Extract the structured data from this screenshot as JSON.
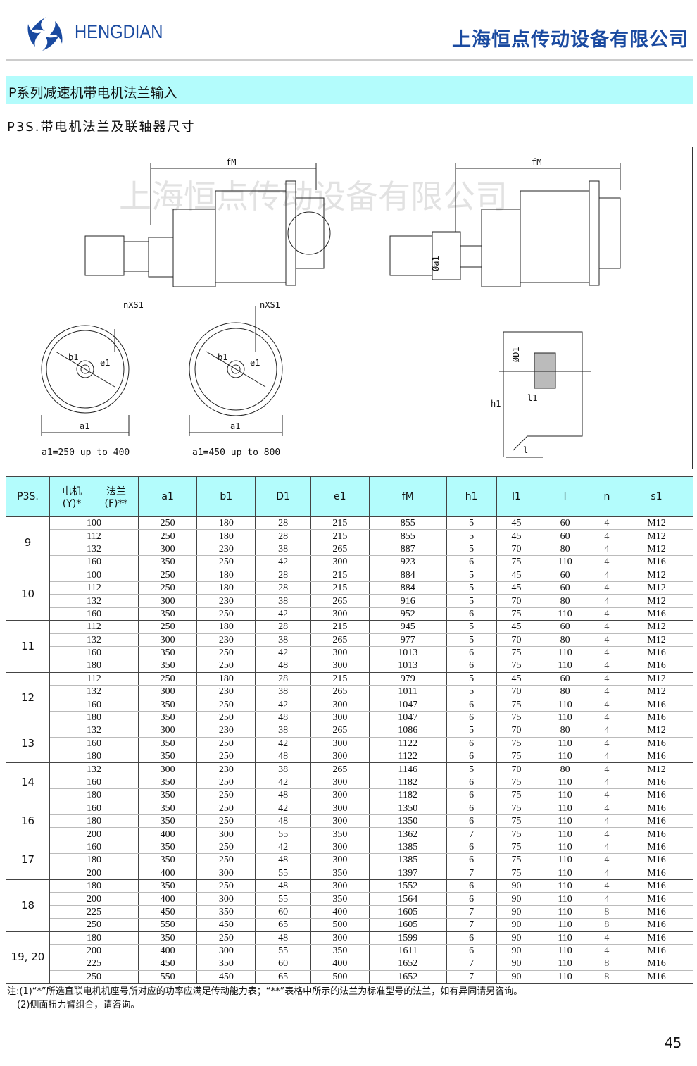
{
  "header": {
    "brand": "HENGDIAN",
    "company": "上海恒点传动设备有限公司",
    "brand_color": "#1a4aa0"
  },
  "section_title": "P系列减速机带电机法兰输入",
  "subtitle": "P3S.带电机法兰及联轴器尺寸",
  "drawing": {
    "watermark": "上海恒点传动设备有限公司",
    "labels": {
      "fM_left": "fM",
      "fM_right": "fM",
      "nXS1_left": "nXS1",
      "nXS1_right": "nXS1",
      "b1_left": "b1",
      "e1_left": "e1",
      "b1_right": "b1",
      "e1_right": "e1",
      "a1_left": "a1",
      "a1_right": "a1",
      "caption_left": "a1=250 up to 400",
      "caption_right": "a1=450 up to 800",
      "oa1": "Øa1",
      "oD1": "ØD1",
      "h1": "h1",
      "l1": "l1",
      "l": "l"
    }
  },
  "table": {
    "headers": {
      "p3s": "P3S.",
      "motor_top": "电机",
      "motor_bottom": "(Y)*",
      "flange_top": "法兰",
      "flange_bottom": "(F)**",
      "cols": [
        "a1",
        "b1",
        "D1",
        "e1",
        "fM",
        "h1",
        "l1",
        "l",
        "n",
        "s1"
      ]
    },
    "groups": [
      {
        "size": "9",
        "rows": [
          [
            "100",
            "250",
            "180",
            "28",
            "215",
            "855",
            "5",
            "45",
            "60",
            "4",
            "M12"
          ],
          [
            "112",
            "250",
            "180",
            "28",
            "215",
            "855",
            "5",
            "45",
            "60",
            "4",
            "M12"
          ],
          [
            "132",
            "300",
            "230",
            "38",
            "265",
            "887",
            "5",
            "70",
            "80",
            "4",
            "M12"
          ],
          [
            "160",
            "350",
            "250",
            "42",
            "300",
            "923",
            "6",
            "75",
            "110",
            "4",
            "M16"
          ]
        ]
      },
      {
        "size": "10",
        "rows": [
          [
            "100",
            "250",
            "180",
            "28",
            "215",
            "884",
            "5",
            "45",
            "60",
            "4",
            "M12"
          ],
          [
            "112",
            "250",
            "180",
            "28",
            "215",
            "884",
            "5",
            "45",
            "60",
            "4",
            "M12"
          ],
          [
            "132",
            "300",
            "230",
            "38",
            "265",
            "916",
            "5",
            "70",
            "80",
            "4",
            "M12"
          ],
          [
            "160",
            "350",
            "250",
            "42",
            "300",
            "952",
            "6",
            "75",
            "110",
            "4",
            "M16"
          ]
        ]
      },
      {
        "size": "11",
        "rows": [
          [
            "112",
            "250",
            "180",
            "28",
            "215",
            "945",
            "5",
            "45",
            "60",
            "4",
            "M12"
          ],
          [
            "132",
            "300",
            "230",
            "38",
            "265",
            "977",
            "5",
            "70",
            "80",
            "4",
            "M12"
          ],
          [
            "160",
            "350",
            "250",
            "42",
            "300",
            "1013",
            "6",
            "75",
            "110",
            "4",
            "M16"
          ],
          [
            "180",
            "350",
            "250",
            "48",
            "300",
            "1013",
            "6",
            "75",
            "110",
            "4",
            "M16"
          ]
        ]
      },
      {
        "size": "12",
        "rows": [
          [
            "112",
            "250",
            "180",
            "28",
            "215",
            "979",
            "5",
            "45",
            "60",
            "4",
            "M12"
          ],
          [
            "132",
            "300",
            "230",
            "38",
            "265",
            "1011",
            "5",
            "70",
            "80",
            "4",
            "M12"
          ],
          [
            "160",
            "350",
            "250",
            "42",
            "300",
            "1047",
            "6",
            "75",
            "110",
            "4",
            "M16"
          ],
          [
            "180",
            "350",
            "250",
            "48",
            "300",
            "1047",
            "6",
            "75",
            "110",
            "4",
            "M16"
          ]
        ]
      },
      {
        "size": "13",
        "rows": [
          [
            "132",
            "300",
            "230",
            "38",
            "265",
            "1086",
            "5",
            "70",
            "80",
            "4",
            "M12"
          ],
          [
            "160",
            "350",
            "250",
            "42",
            "300",
            "1122",
            "6",
            "75",
            "110",
            "4",
            "M16"
          ],
          [
            "180",
            "350",
            "250",
            "48",
            "300",
            "1122",
            "6",
            "75",
            "110",
            "4",
            "M16"
          ]
        ]
      },
      {
        "size": "14",
        "rows": [
          [
            "132",
            "300",
            "230",
            "38",
            "265",
            "1146",
            "5",
            "70",
            "80",
            "4",
            "M12"
          ],
          [
            "160",
            "350",
            "250",
            "42",
            "300",
            "1182",
            "6",
            "75",
            "110",
            "4",
            "M16"
          ],
          [
            "180",
            "350",
            "250",
            "48",
            "300",
            "1182",
            "6",
            "75",
            "110",
            "4",
            "M16"
          ]
        ]
      },
      {
        "size": "16",
        "rows": [
          [
            "160",
            "350",
            "250",
            "42",
            "300",
            "1350",
            "6",
            "75",
            "110",
            "4",
            "M16"
          ],
          [
            "180",
            "350",
            "250",
            "48",
            "300",
            "1350",
            "6",
            "75",
            "110",
            "4",
            "M16"
          ],
          [
            "200",
            "400",
            "300",
            "55",
            "350",
            "1362",
            "7",
            "75",
            "110",
            "4",
            "M16"
          ]
        ]
      },
      {
        "size": "17",
        "rows": [
          [
            "160",
            "350",
            "250",
            "42",
            "300",
            "1385",
            "6",
            "75",
            "110",
            "4",
            "M16"
          ],
          [
            "180",
            "350",
            "250",
            "48",
            "300",
            "1385",
            "6",
            "75",
            "110",
            "4",
            "M16"
          ],
          [
            "200",
            "400",
            "300",
            "55",
            "350",
            "1397",
            "7",
            "75",
            "110",
            "4",
            "M16"
          ]
        ]
      },
      {
        "size": "18",
        "rows": [
          [
            "180",
            "350",
            "250",
            "48",
            "300",
            "1552",
            "6",
            "90",
            "110",
            "4",
            "M16"
          ],
          [
            "200",
            "400",
            "300",
            "55",
            "350",
            "1564",
            "6",
            "90",
            "110",
            "4",
            "M16"
          ],
          [
            "225",
            "450",
            "350",
            "60",
            "400",
            "1605",
            "7",
            "90",
            "110",
            "8",
            "M16"
          ],
          [
            "250",
            "550",
            "450",
            "65",
            "500",
            "1605",
            "7",
            "90",
            "110",
            "8",
            "M16"
          ]
        ]
      },
      {
        "size": "19, 20",
        "rows": [
          [
            "180",
            "350",
            "250",
            "48",
            "300",
            "1599",
            "6",
            "90",
            "110",
            "4",
            "M16"
          ],
          [
            "200",
            "400",
            "300",
            "55",
            "350",
            "1611",
            "6",
            "90",
            "110",
            "4",
            "M16"
          ],
          [
            "225",
            "450",
            "350",
            "60",
            "400",
            "1652",
            "7",
            "90",
            "110",
            "8",
            "M16"
          ],
          [
            "250",
            "550",
            "450",
            "65",
            "500",
            "1652",
            "7",
            "90",
            "110",
            "8",
            "M16"
          ]
        ]
      }
    ]
  },
  "notes": [
    "注:(1)“*”所选直联电机机座号所对应的功率应满足传动能力表；“**”表格中所示的法兰为标准型号的法兰，如有异同请另咨询。",
    "(2)侧面扭力臂组合，请咨询。"
  ],
  "page_number": "45"
}
